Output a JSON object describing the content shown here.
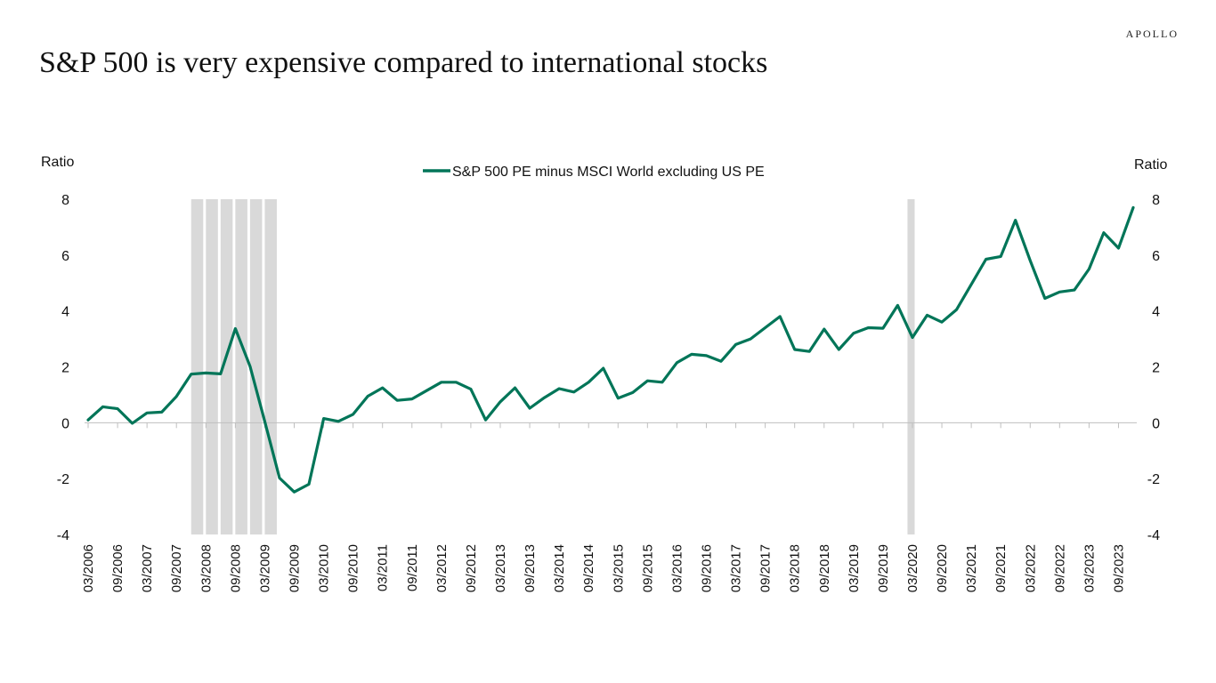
{
  "brand": {
    "logo_text": "APOLLO"
  },
  "page_title": "S&P 500 is very expensive compared to international stocks",
  "colors": {
    "series": "#007558",
    "recession": "#d9d9d9",
    "axis": "#bfbfbf"
  },
  "chart_data": {
    "type": "line",
    "title": "S&P 500 is very expensive compared to international stocks",
    "ylabel_left": "Ratio",
    "ylabel_right": "Ratio",
    "ylim": [
      -4,
      8
    ],
    "yticks": [
      -4,
      -2,
      0,
      2,
      4,
      6,
      8
    ],
    "x_tick_labels": [
      "03/2006",
      "09/2006",
      "03/2007",
      "09/2007",
      "03/2008",
      "09/2008",
      "03/2009",
      "09/2009",
      "03/2010",
      "09/2010",
      "03/2011",
      "09/2011",
      "03/2012",
      "09/2012",
      "03/2013",
      "09/2013",
      "03/2014",
      "09/2014",
      "03/2015",
      "09/2015",
      "03/2016",
      "09/2016",
      "03/2017",
      "09/2017",
      "03/2018",
      "09/2018",
      "03/2019",
      "09/2019",
      "03/2020",
      "09/2020",
      "03/2021",
      "09/2021",
      "03/2022",
      "09/2022",
      "03/2023",
      "09/2023"
    ],
    "legend_position": "top-center",
    "grid": false,
    "recession_shading": [
      {
        "start": "2007-12",
        "end": "2009-06"
      },
      {
        "start": "2020-02",
        "end": "2020-04"
      }
    ],
    "series": [
      {
        "name": "S&P 500 PE minus MSCI World excluding US PE",
        "x": [
          "2006-03",
          "2006-06",
          "2006-09",
          "2006-12",
          "2007-03",
          "2007-06",
          "2007-09",
          "2007-12",
          "2008-03",
          "2008-06",
          "2008-09",
          "2008-12",
          "2009-03",
          "2009-06",
          "2009-09",
          "2009-12",
          "2010-03",
          "2010-06",
          "2010-09",
          "2010-12",
          "2011-03",
          "2011-06",
          "2011-09",
          "2011-12",
          "2012-03",
          "2012-06",
          "2012-09",
          "2012-12",
          "2013-03",
          "2013-06",
          "2013-09",
          "2013-12",
          "2014-03",
          "2014-06",
          "2014-09",
          "2014-12",
          "2015-03",
          "2015-06",
          "2015-09",
          "2015-12",
          "2016-03",
          "2016-06",
          "2016-09",
          "2016-12",
          "2017-03",
          "2017-06",
          "2017-09",
          "2017-12",
          "2018-03",
          "2018-06",
          "2018-09",
          "2018-12",
          "2019-03",
          "2019-06",
          "2019-09",
          "2019-12",
          "2020-03",
          "2020-06",
          "2020-09",
          "2020-12",
          "2021-03",
          "2021-06",
          "2021-09",
          "2021-12",
          "2022-03",
          "2022-06",
          "2022-09",
          "2022-12",
          "2023-03",
          "2023-06",
          "2023-09",
          "2023-12"
        ],
        "y": [
          0.1,
          0.57,
          0.5,
          -0.02,
          0.35,
          0.38,
          0.94,
          1.74,
          1.78,
          1.75,
          3.37,
          2.02,
          0.05,
          -1.98,
          -2.48,
          -2.2,
          0.15,
          0.05,
          0.3,
          0.95,
          1.25,
          0.8,
          0.85,
          1.15,
          1.45,
          1.45,
          1.2,
          0.1,
          0.75,
          1.25,
          0.52,
          0.9,
          1.22,
          1.1,
          1.45,
          1.95,
          0.88,
          1.08,
          1.5,
          1.45,
          2.15,
          2.45,
          2.4,
          2.2,
          2.8,
          3.0,
          3.4,
          3.8,
          2.62,
          2.55,
          3.35,
          2.62,
          3.2,
          3.4,
          3.38,
          4.2,
          3.05,
          3.85,
          3.6,
          4.05,
          4.95,
          5.85,
          5.95,
          7.25,
          5.8,
          4.45,
          4.68,
          4.75,
          5.5,
          6.8,
          6.25,
          7.7
        ]
      }
    ]
  }
}
